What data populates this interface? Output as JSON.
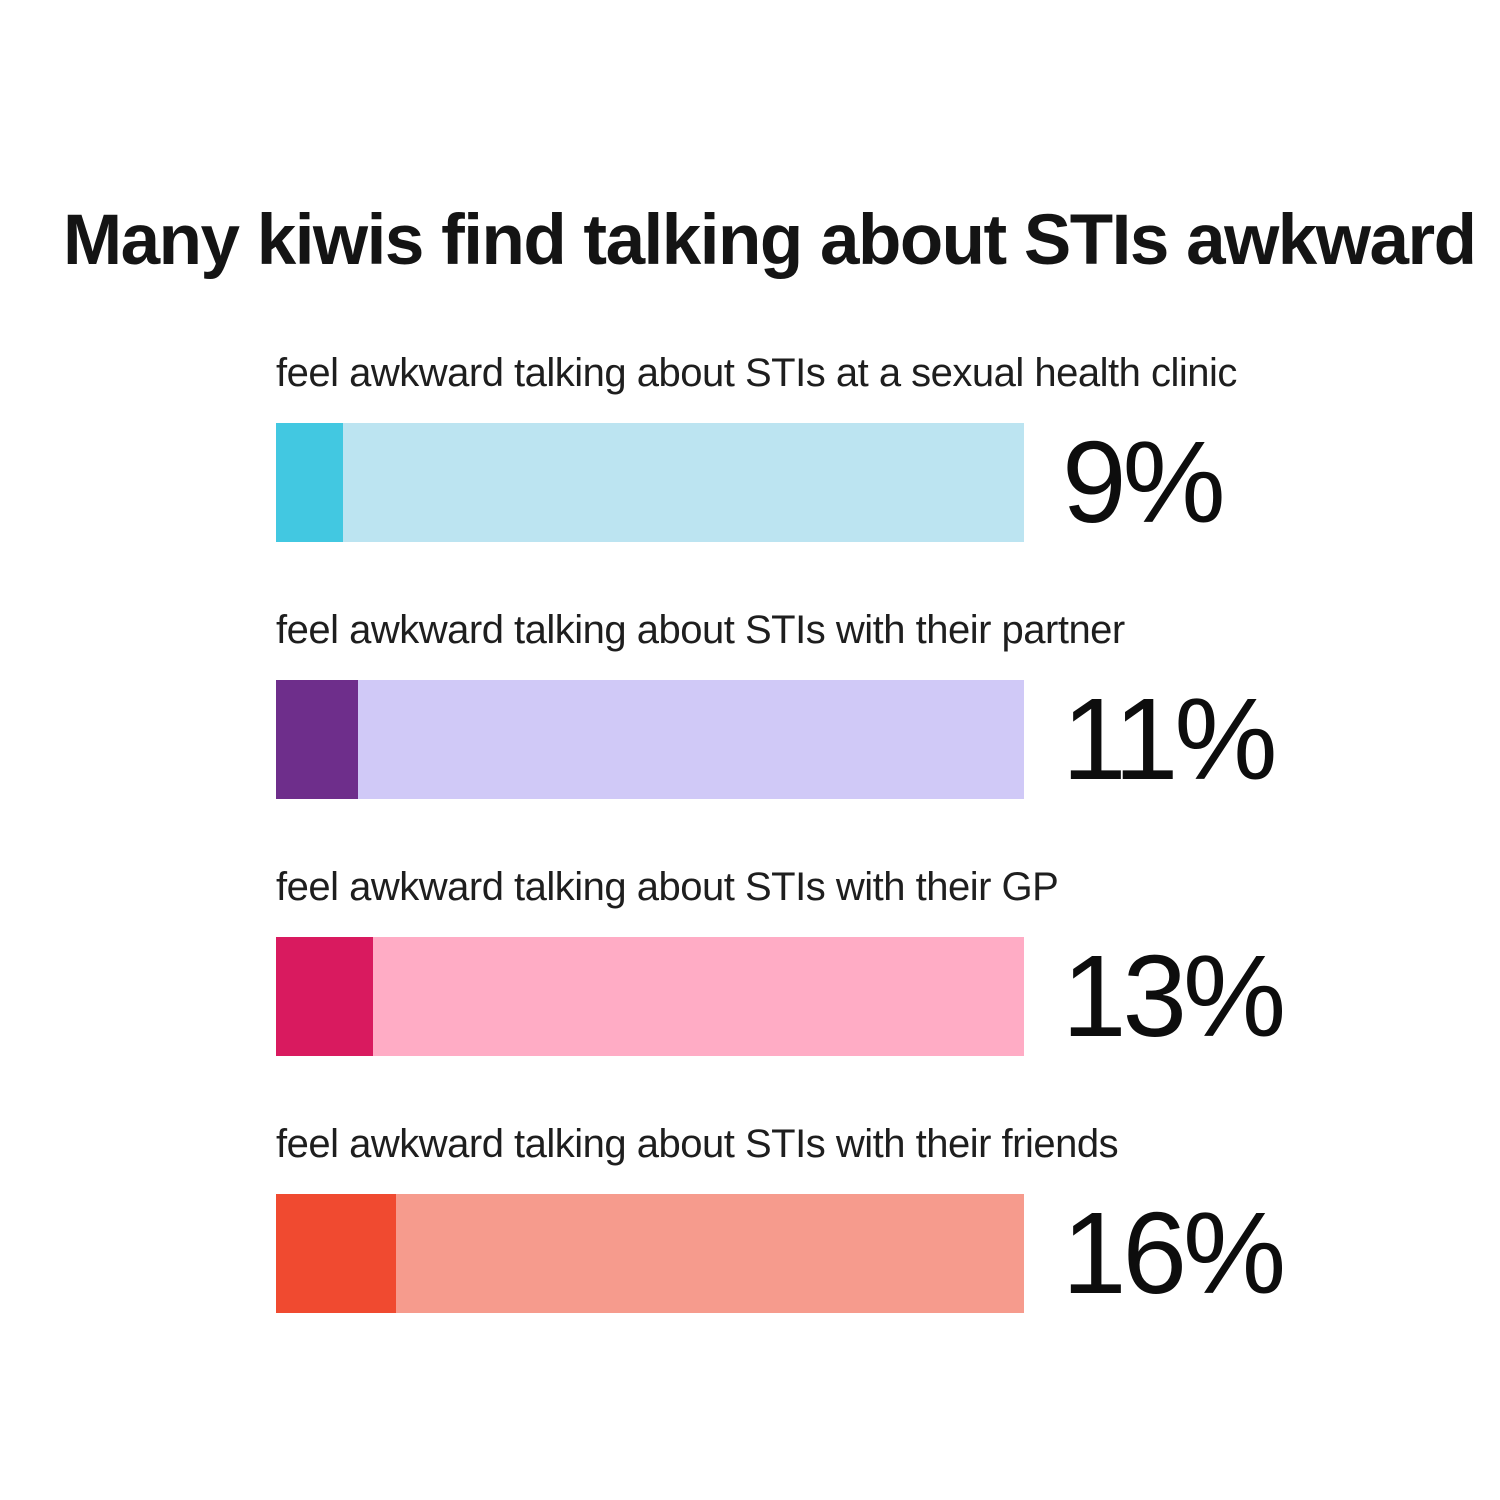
{
  "title": "Many kiwis find talking about STIs awkward",
  "chart_data": {
    "type": "bar",
    "orientation": "horizontal",
    "title": "Many kiwis find talking about STIs awkward",
    "categories": [
      "feel awkward talking about STIs at a sexual health clinic",
      "feel awkward talking about STIs with their partner",
      "feel awkward talking about STIs with their GP",
      "feel awkward talking about STIs with their friends"
    ],
    "values": [
      9,
      11,
      13,
      16
    ],
    "value_labels": [
      "9%",
      "11%",
      "13%",
      "16%"
    ],
    "axis_range": [
      0,
      100
    ],
    "grid": false,
    "legend": false,
    "value_label_position": "right-of-bar",
    "bar_style": "dark fill segment over full-width light track representing 100%"
  },
  "rows": [
    {
      "label": "feel awkward talking about STIs at a sexual health clinic",
      "value": 9,
      "value_label": "9%",
      "fill_color": "#42C8E1",
      "track_color": "#BCE4F1"
    },
    {
      "label": "feel awkward talking about STIs with their partner",
      "value": 11,
      "value_label": "11%",
      "fill_color": "#6E2E8B",
      "track_color": "#D0C9F7"
    },
    {
      "label": "feel awkward talking about STIs with their GP",
      "value": 13,
      "value_label": "13%",
      "fill_color": "#D91A5F",
      "track_color": "#FFACC5"
    },
    {
      "label": "feel awkward talking about STIs with their friends",
      "value": 16,
      "value_label": "16%",
      "fill_color": "#F04A30",
      "track_color": "#F69B8D"
    }
  ]
}
